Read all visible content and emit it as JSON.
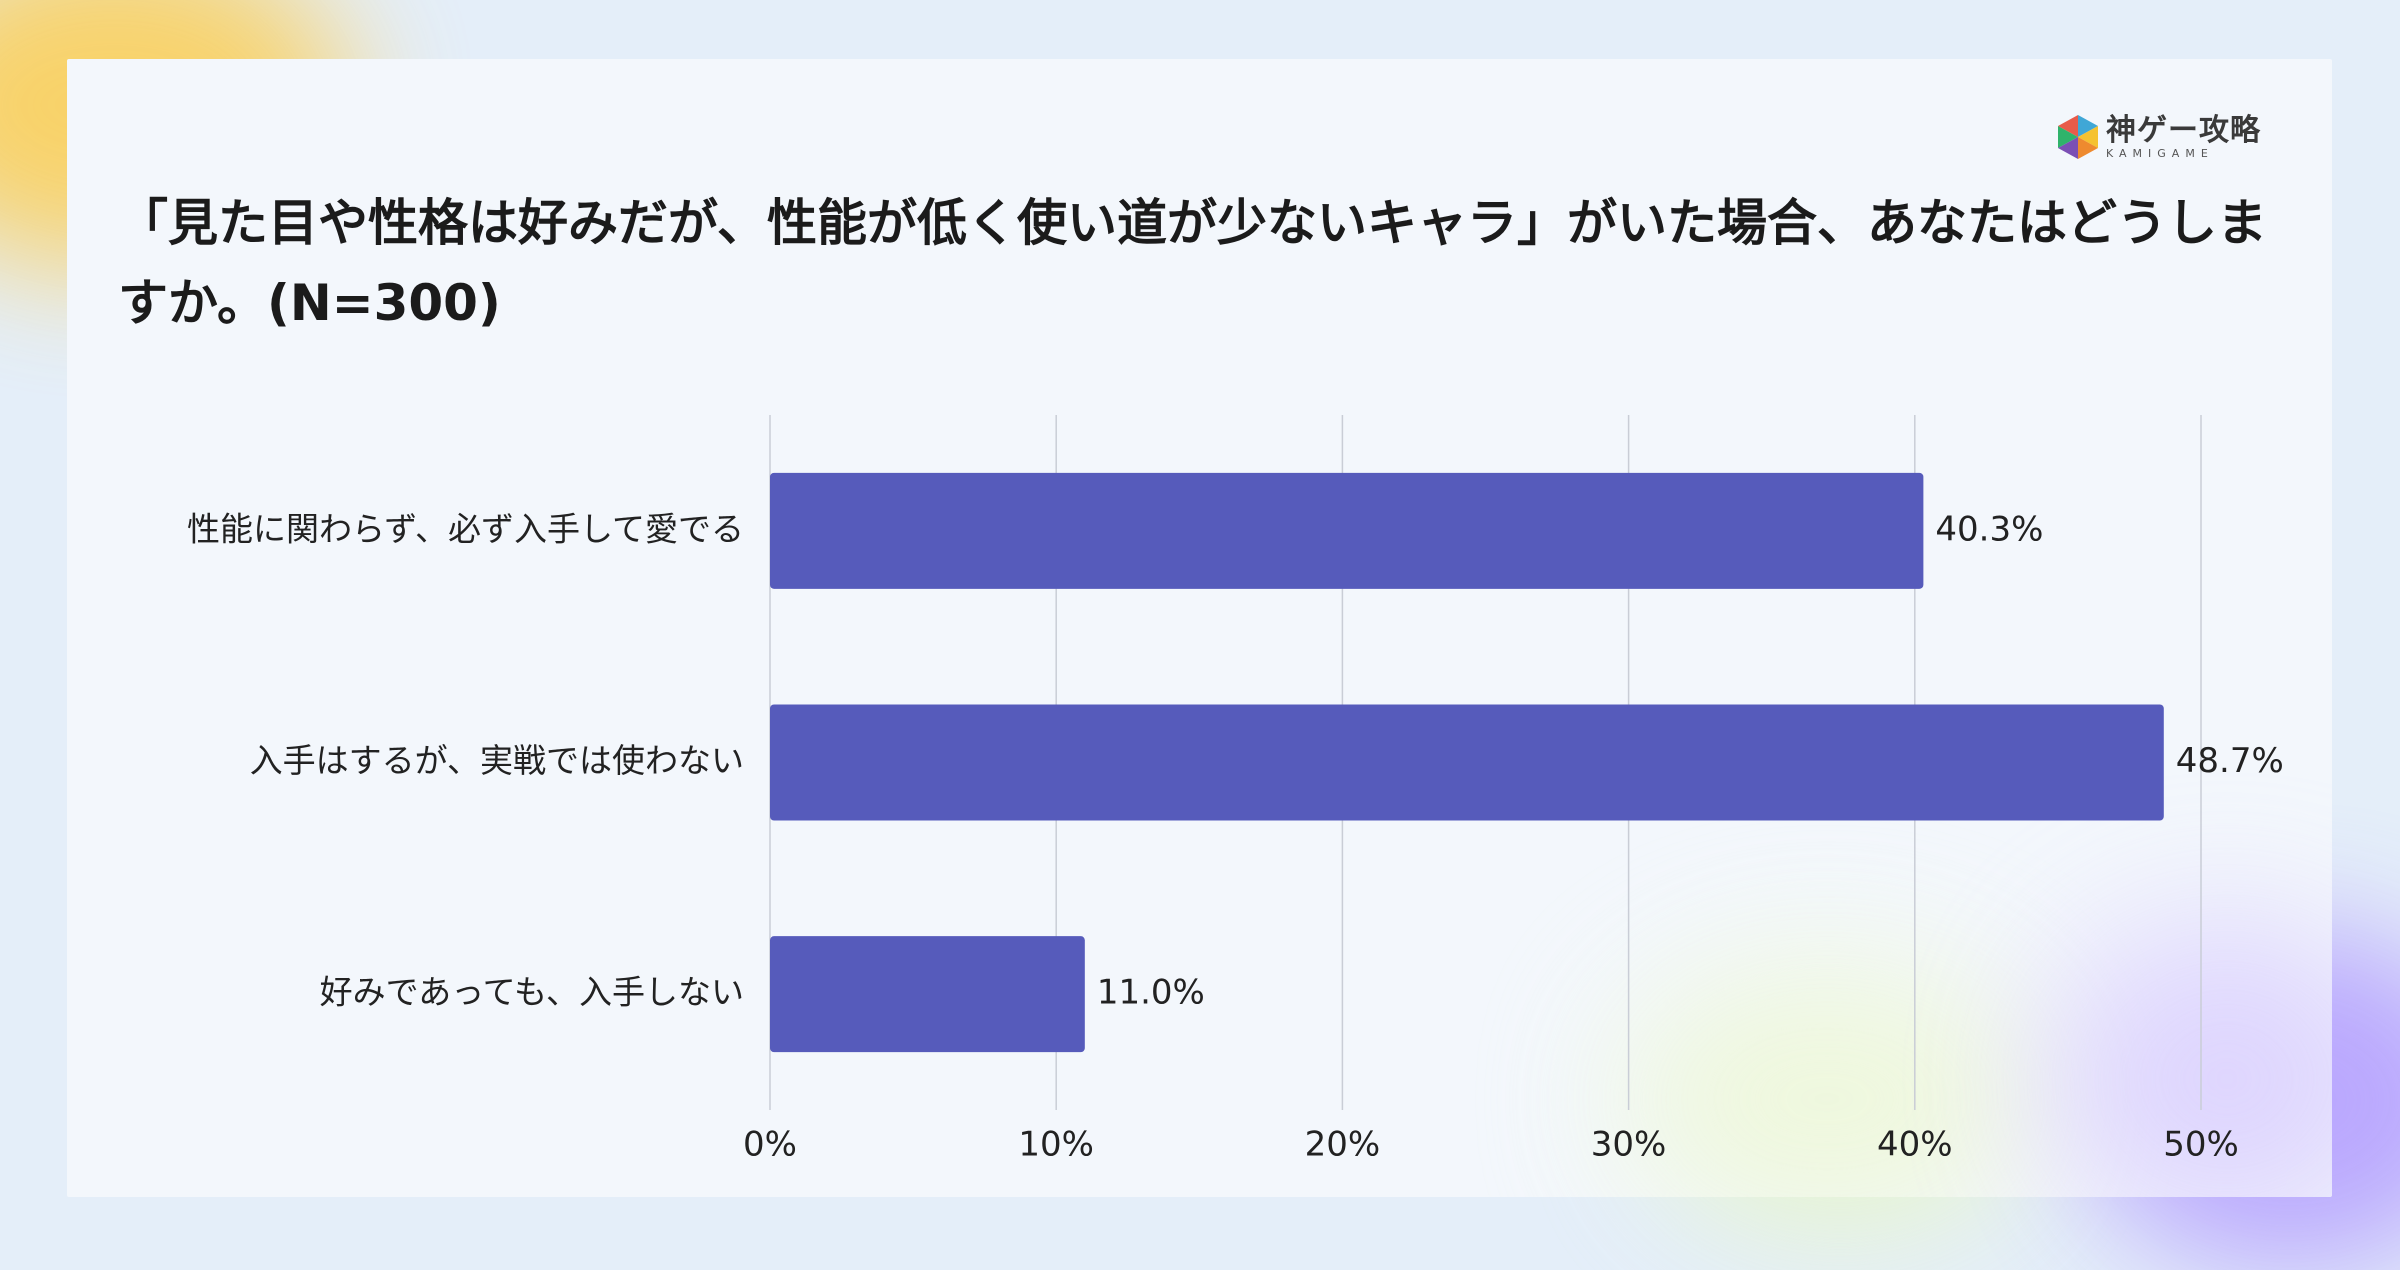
{
  "header": {
    "title": "「見た目や性格は好みだが、性能が低く使い道が少ないキャラ」がいた場合、あなたはどうしますか。(N=300)",
    "logo_main": "神ゲー攻略",
    "logo_sub": "KAMIGAME"
  },
  "colors": {
    "bar": "#565bbb",
    "grid": "#c9cdd6"
  },
  "chart_data": {
    "type": "bar",
    "orientation": "horizontal",
    "title": "「見た目や性格は好みだが、性能が低く使い道が少ないキャラ」がいた場合、あなたはどうしますか。(N=300)",
    "categories": [
      "性能に関わらず、必ず入手して愛でる",
      "入手はするが、実戦では使わない",
      "好みであっても、入手しない"
    ],
    "values": [
      40.3,
      48.7,
      11.0
    ],
    "value_labels": [
      "40.3%",
      "48.7%",
      "11.0%"
    ],
    "xlim": [
      0,
      50
    ],
    "xticks": [
      0,
      10,
      20,
      30,
      40,
      50
    ],
    "xtick_labels": [
      "0%",
      "10%",
      "20%",
      "30%",
      "40%",
      "50%"
    ],
    "xlabel": "",
    "ylabel": "",
    "grid": true,
    "legend": "none"
  }
}
